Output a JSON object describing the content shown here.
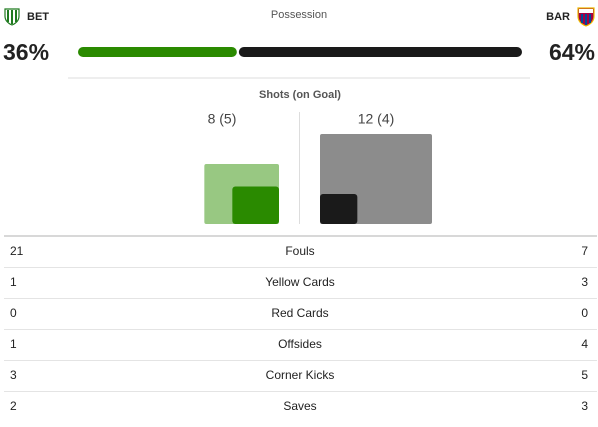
{
  "teams": {
    "home": "BET",
    "away": "BAR"
  },
  "possession": {
    "title": "Possession",
    "home": {
      "value": 36,
      "label": "36%"
    },
    "away": {
      "value": 64,
      "label": "64%"
    }
  },
  "shots": {
    "title": "Shots (on Goal)",
    "home": {
      "label": "8 (5)",
      "shots": 8,
      "on_goal": 5
    },
    "away": {
      "label": "12 (4)",
      "shots": 12,
      "on_goal": 4
    }
  },
  "stats": [
    {
      "label": "Fouls",
      "home": "21",
      "away": "7"
    },
    {
      "label": "Yellow Cards",
      "home": "1",
      "away": "3"
    },
    {
      "label": "Red Cards",
      "home": "0",
      "away": "0"
    },
    {
      "label": "Offsides",
      "home": "1",
      "away": "4"
    },
    {
      "label": "Corner Kicks",
      "home": "3",
      "away": "5"
    },
    {
      "label": "Saves",
      "home": "2",
      "away": "3"
    }
  ]
}
